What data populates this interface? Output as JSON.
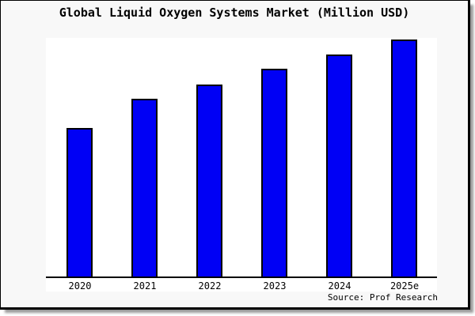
{
  "title": "Global Liquid Oxygen Systems Market (Million USD)",
  "source_note": "Source: Prof Research",
  "colors": {
    "bar_fill": "#0000f5",
    "bar_edge": "#000000",
    "page_background": "#f8f8f8",
    "plot_background": "#ffffff",
    "axis": "#000000",
    "border": "#000000",
    "shadow": "#9a9a9a"
  },
  "chart_data": {
    "type": "bar",
    "title": "Global Liquid Oxygen Systems Market (Million USD)",
    "categories": [
      "2020",
      "2021",
      "2022",
      "2023",
      "2024",
      "2025e"
    ],
    "values": [
      189,
      226,
      244,
      264,
      282,
      301
    ],
    "value_basis": "relative heights estimated from pixels; y-axis has no ticks or labels",
    "xlabel": "",
    "ylabel": "",
    "ylim": [
      0,
      320
    ],
    "grid": false,
    "legend": false,
    "y_axis_visible": false,
    "source": "Source: Prof Research"
  }
}
